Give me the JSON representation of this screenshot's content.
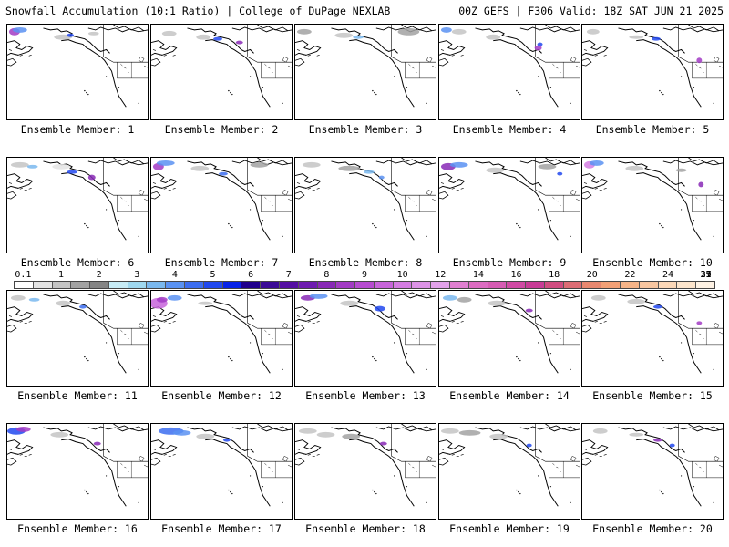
{
  "header": {
    "left": "Snowfall Accumulation (10:1 Ratio) | College of DuPage NEXLAB",
    "right": "00Z GEFS | F306 Valid: 18Z SAT JUN 21 2025"
  },
  "colorbar": {
    "colors": [
      "#ffffff",
      "#e4e4e4",
      "#c4c4c4",
      "#a2a2a2",
      "#858585",
      "#c7ecf6",
      "#9fd8ef",
      "#7ab8ee",
      "#5a92f2",
      "#3c6df0",
      "#2148ee",
      "#0622e8",
      "#20008c",
      "#3a0a96",
      "#540fa3",
      "#6e1cb0",
      "#8829b6",
      "#a23bc4",
      "#b64bd0",
      "#c764da",
      "#d47ce2",
      "#dc93e6",
      "#e2a2ea",
      "#e07fd0",
      "#dc6cc1",
      "#d65cb3",
      "#d04aa4",
      "#c83c96",
      "#d04d80",
      "#dc6d75",
      "#e88870",
      "#f2a076",
      "#f6b488",
      "#f8c6a0",
      "#fcd8b8",
      "#fde5cc",
      "#fef2e4"
    ],
    "labels": [
      "0.1",
      "1",
      "2",
      "3",
      "4",
      "5",
      "6",
      "7",
      "8",
      "9",
      "10",
      "12",
      "14",
      "16",
      "18",
      "20",
      "22",
      "24",
      "27",
      "31",
      "35",
      "39"
    ]
  },
  "members": [
    {
      "caption": "Ensemble Member: 1"
    },
    {
      "caption": "Ensemble Member: 2"
    },
    {
      "caption": "Ensemble Member: 3"
    },
    {
      "caption": "Ensemble Member: 4"
    },
    {
      "caption": "Ensemble Member: 5"
    },
    {
      "caption": "Ensemble Member: 6"
    },
    {
      "caption": "Ensemble Member: 7"
    },
    {
      "caption": "Ensemble Member: 8"
    },
    {
      "caption": "Ensemble Member: 9"
    },
    {
      "caption": "Ensemble Member: 10"
    },
    {
      "caption": "Ensemble Member: 11"
    },
    {
      "caption": "Ensemble Member: 12"
    },
    {
      "caption": "Ensemble Member: 13"
    },
    {
      "caption": "Ensemble Member: 14"
    },
    {
      "caption": "Ensemble Member: 15"
    },
    {
      "caption": "Ensemble Member: 16"
    },
    {
      "caption": "Ensemble Member: 17"
    },
    {
      "caption": "Ensemble Member: 18"
    },
    {
      "caption": "Ensemble Member: 19"
    },
    {
      "caption": "Ensemble Member: 20"
    }
  ]
}
